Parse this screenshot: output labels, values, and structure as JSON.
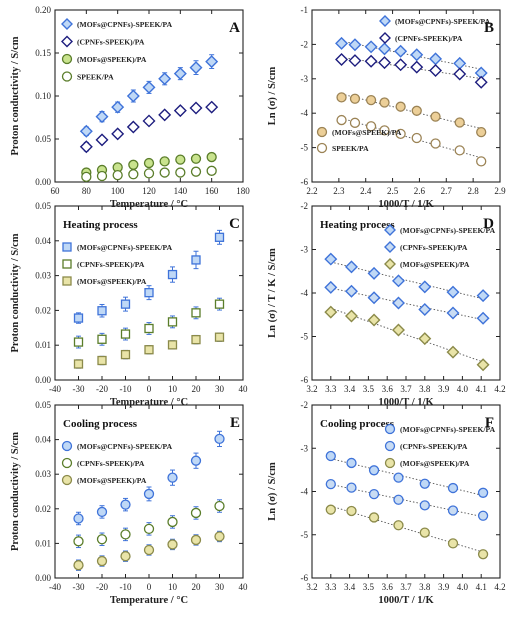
{
  "colors": {
    "blue_fill": "#bfd8f6",
    "blue_edge": "#3f73d9",
    "navy_edge": "#1d1d7e",
    "green_edge": "#5a7d2a",
    "green_fill": "#c9e38e",
    "khaki_fill": "#e9e4a8",
    "khaki_edge": "#8b8a4a",
    "tan_fill": "#eccf98",
    "tan_edge": "#9b8355",
    "error_bar": "#3f73d9"
  },
  "chart_data": [
    {
      "panel": "A",
      "type": "scatter",
      "title": "",
      "xlabel": "Temperature / °C",
      "ylabel": "Proton conductivity / S/cm",
      "xlim": [
        60,
        180
      ],
      "ylim": [
        0,
        0.2
      ],
      "xticks": [
        60,
        80,
        100,
        120,
        140,
        160,
        180
      ],
      "yticks": [
        0,
        0.05,
        0.1,
        0.15,
        0.2
      ],
      "xtick_labels": [
        "60",
        "80",
        "100",
        "120",
        "140",
        "160",
        "180"
      ],
      "ytick_labels": [
        "0.00",
        "0.05",
        "0.10",
        "0.15",
        "0.20"
      ],
      "legend": "top-left",
      "series": [
        {
          "name": "(MOFs@CPNFs)-SPEEK/PA",
          "marker": "diamond",
          "fill": "#bfd8f6",
          "edge": "#3f73d9",
          "x": [
            80,
            90,
            100,
            110,
            120,
            130,
            140,
            150,
            160
          ],
          "y": [
            0.059,
            0.076,
            0.087,
            0.1,
            0.11,
            0.12,
            0.126,
            0.133,
            0.14
          ],
          "err": [
            0.005,
            0.006,
            0.006,
            0.007,
            0.007,
            0.007,
            0.007,
            0.008,
            0.008
          ]
        },
        {
          "name": "(CPNFs-SPEEK)/PA",
          "marker": "diamond",
          "fill": "#ffffff",
          "edge": "#1d1d7e",
          "x": [
            80,
            90,
            100,
            110,
            120,
            130,
            140,
            150,
            160
          ],
          "y": [
            0.041,
            0.049,
            0.056,
            0.064,
            0.071,
            0.078,
            0.083,
            0.086,
            0.087
          ],
          "err": [
            0.005,
            0.004,
            0.004,
            0.004,
            0.004,
            0.004,
            0.004,
            0.004,
            0.004
          ]
        },
        {
          "name": "(MOFs@SPEEK)/PA",
          "marker": "circle",
          "fill": "#c9e38e",
          "edge": "#5a7d2a",
          "x": [
            80,
            90,
            100,
            110,
            120,
            130,
            140,
            150,
            160
          ],
          "y": [
            0.011,
            0.014,
            0.017,
            0.02,
            0.022,
            0.024,
            0.026,
            0.027,
            0.029
          ],
          "err": [
            0.003,
            0.003,
            0.003,
            0.003,
            0.003,
            0.003,
            0.003,
            0.003,
            0.003
          ]
        },
        {
          "name": "SPEEK/PA",
          "marker": "circle",
          "fill": "#ffffff",
          "edge": "#5a7d2a",
          "x": [
            80,
            90,
            100,
            110,
            120,
            130,
            140,
            150,
            160
          ],
          "y": [
            0.006,
            0.007,
            0.008,
            0.009,
            0.01,
            0.011,
            0.011,
            0.012,
            0.013
          ],
          "err": [
            0.002,
            0.002,
            0.002,
            0.002,
            0.002,
            0.002,
            0.002,
            0.002,
            0.002
          ]
        }
      ]
    },
    {
      "panel": "B",
      "type": "scatter",
      "title": "",
      "xlabel": "1000/T / 1/K",
      "ylabel": "Ln (σ)  /  S/cm",
      "xlim": [
        2.2,
        2.9
      ],
      "ylim": [
        -6,
        -1
      ],
      "xticks": [
        2.2,
        2.3,
        2.4,
        2.5,
        2.6,
        2.7,
        2.8,
        2.9
      ],
      "yticks": [
        -6,
        -5,
        -4,
        -3,
        -2,
        -1
      ],
      "xtick_labels": [
        "2.2",
        "2.3",
        "2.4",
        "2.5",
        "2.6",
        "2.7",
        "2.8",
        "2.9"
      ],
      "ytick_labels": [
        "-6",
        "-5",
        "-4",
        "-3",
        "-2",
        "-1"
      ],
      "legend_groups": [
        {
          "position": "top-right",
          "items": [
            0,
            1
          ]
        },
        {
          "position": "bottom-left",
          "items": [
            2,
            3
          ]
        }
      ],
      "fit_lines": true,
      "series": [
        {
          "name": "(MOFs@CPNFs)-SPEEK/PA",
          "marker": "diamond",
          "fill": "#bfd8f6",
          "edge": "#3f73d9",
          "x": [
            2.31,
            2.36,
            2.42,
            2.47,
            2.53,
            2.59,
            2.66,
            2.75,
            2.83
          ],
          "y": [
            -1.97,
            -2.01,
            -2.07,
            -2.13,
            -2.2,
            -2.3,
            -2.42,
            -2.55,
            -2.83
          ]
        },
        {
          "name": "(CPNFs-SPEEK)/PA",
          "marker": "diamond",
          "fill": "#ffffff",
          "edge": "#1d1d7e",
          "x": [
            2.31,
            2.36,
            2.42,
            2.47,
            2.53,
            2.59,
            2.66,
            2.75,
            2.83
          ],
          "y": [
            -2.44,
            -2.47,
            -2.49,
            -2.53,
            -2.59,
            -2.66,
            -2.76,
            -2.86,
            -3.1
          ]
        },
        {
          "name": "(MOFs@SPEEK)/PA",
          "marker": "circle",
          "fill": "#eccf98",
          "edge": "#9b8355",
          "x": [
            2.31,
            2.36,
            2.42,
            2.47,
            2.53,
            2.59,
            2.66,
            2.75,
            2.83
          ],
          "y": [
            -3.54,
            -3.58,
            -3.62,
            -3.69,
            -3.81,
            -3.93,
            -4.1,
            -4.27,
            -4.55
          ]
        },
        {
          "name": "SPEEK/PA",
          "marker": "circle",
          "fill": "#ffffff",
          "edge": "#9b8355",
          "x": [
            2.31,
            2.36,
            2.42,
            2.47,
            2.53,
            2.59,
            2.66,
            2.75,
            2.83
          ],
          "y": [
            -4.2,
            -4.28,
            -4.38,
            -4.5,
            -4.6,
            -4.72,
            -4.88,
            -5.08,
            -5.4
          ]
        }
      ]
    },
    {
      "panel": "C",
      "type": "scatter",
      "title": "Heating process",
      "xlabel": "Temperature / °C",
      "ylabel": "Proton conductivity / S/cm",
      "xlim": [
        -40,
        40
      ],
      "ylim": [
        0,
        0.05
      ],
      "xticks": [
        -40,
        -30,
        -20,
        -10,
        0,
        10,
        20,
        30,
        40
      ],
      "yticks": [
        0,
        0.01,
        0.02,
        0.03,
        0.04,
        0.05
      ],
      "xtick_labels": [
        "-40",
        "-30",
        "-20",
        "-10",
        "0",
        "10",
        "20",
        "30",
        "40"
      ],
      "ytick_labels": [
        "0.00",
        "0.01",
        "0.02",
        "0.03",
        "0.04",
        "0.05"
      ],
      "legend": "top-left",
      "series": [
        {
          "name": "(MOFs@CPNFs)-SPEEK/PA",
          "marker": "square",
          "fill": "#bfd8f6",
          "edge": "#3f73d9",
          "x": [
            -30,
            -20,
            -10,
            0,
            10,
            20,
            30
          ],
          "y": [
            0.0178,
            0.0199,
            0.0218,
            0.0251,
            0.0303,
            0.0345,
            0.041
          ],
          "err": [
            0.0015,
            0.0018,
            0.002,
            0.002,
            0.0022,
            0.0025,
            0.002
          ]
        },
        {
          "name": "(CPNFs-SPEEK)/PA",
          "marker": "square",
          "fill": "#ffffff",
          "edge": "#5a7d2a",
          "x": [
            -30,
            -20,
            -10,
            0,
            10,
            20,
            30
          ],
          "y": [
            0.0109,
            0.0117,
            0.0132,
            0.0148,
            0.0167,
            0.0193,
            0.0218
          ],
          "err": [
            0.0017,
            0.0017,
            0.0017,
            0.0017,
            0.0017,
            0.0017,
            0.0017
          ]
        },
        {
          "name": "(MOFs@SPEEK)/PA",
          "marker": "square",
          "fill": "#e9e4a8",
          "edge": "#8b8a4a",
          "x": [
            -30,
            -20,
            -10,
            0,
            10,
            20,
            30
          ],
          "y": [
            0.0046,
            0.0056,
            0.0073,
            0.0087,
            0.0101,
            0.0116,
            0.0123
          ],
          "err": [
            0.0012,
            0.0012,
            0.0012,
            0.0012,
            0.0012,
            0.0012,
            0.0012
          ]
        }
      ]
    },
    {
      "panel": "D",
      "type": "scatter",
      "title": "Heating process",
      "xlabel": "1000/T / 1/K",
      "ylabel": "Ln (σ) / T / K / S/cm",
      "xlim": [
        3.2,
        4.2
      ],
      "ylim": [
        -6,
        -2
      ],
      "xticks": [
        3.2,
        3.3,
        3.4,
        3.5,
        3.6,
        3.7,
        3.8,
        3.9,
        4.0,
        4.1,
        4.2
      ],
      "yticks": [
        -6,
        -5,
        -4,
        -3,
        -2
      ],
      "xtick_labels": [
        "3.2",
        "3.3",
        "3.4",
        "3.5",
        "3.6",
        "3.7",
        "3.8",
        "3.9",
        "4.0",
        "4.1",
        "4.2"
      ],
      "ytick_labels": [
        "-6",
        "-5",
        "-4",
        "-3",
        "-2"
      ],
      "legend": "top-right",
      "fit_lines": true,
      "series": [
        {
          "name": "(MOFs@CPNFs)-SPEEK/PA",
          "marker": "diamond",
          "fill": "#bfd8f6",
          "edge": "#3f73d9",
          "x": [
            3.3,
            3.41,
            3.53,
            3.66,
            3.8,
            3.95,
            4.11
          ],
          "y": [
            -3.22,
            -3.4,
            -3.55,
            -3.72,
            -3.86,
            -3.98,
            -4.06
          ]
        },
        {
          "name": "(CPNFs-SPEEK)/PA",
          "marker": "diamond",
          "fill": "#c9dcf3",
          "edge": "#3f73d9",
          "x": [
            3.3,
            3.41,
            3.53,
            3.66,
            3.8,
            3.95,
            4.11
          ],
          "y": [
            -3.87,
            -3.96,
            -4.11,
            -4.23,
            -4.38,
            -4.46,
            -4.58
          ]
        },
        {
          "name": "(MOFs@SPEEK)/PA",
          "marker": "diamond",
          "fill": "#e9e4a8",
          "edge": "#8b8a4a",
          "x": [
            3.3,
            3.41,
            3.53,
            3.66,
            3.8,
            3.95,
            4.11
          ],
          "y": [
            -4.44,
            -4.53,
            -4.62,
            -4.85,
            -5.05,
            -5.36,
            -5.65
          ]
        }
      ]
    },
    {
      "panel": "E",
      "type": "scatter",
      "title": "Cooling process",
      "xlabel": "Temperature / °C",
      "ylabel": "Proton conductivity / S/cm",
      "xlim": [
        -40,
        40
      ],
      "ylim": [
        0,
        0.05
      ],
      "xticks": [
        -40,
        -30,
        -20,
        -10,
        0,
        10,
        20,
        30,
        40
      ],
      "yticks": [
        0,
        0.01,
        0.02,
        0.03,
        0.04,
        0.05
      ],
      "xtick_labels": [
        "-40",
        "-30",
        "-20",
        "-10",
        "0",
        "10",
        "20",
        "30",
        "40"
      ],
      "ytick_labels": [
        "0.00",
        "0.01",
        "0.02",
        "0.03",
        "0.04",
        "0.05"
      ],
      "legend": "top-left",
      "series": [
        {
          "name": "(MOFs@CPNFs)-SPEEK/PA",
          "marker": "circle",
          "fill": "#bfd8f6",
          "edge": "#3f73d9",
          "x": [
            -30,
            -20,
            -10,
            0,
            10,
            20,
            30
          ],
          "y": [
            0.0172,
            0.0191,
            0.0212,
            0.0243,
            0.029,
            0.0339,
            0.0402
          ],
          "err": [
            0.0018,
            0.0018,
            0.0018,
            0.002,
            0.0022,
            0.0022,
            0.0022
          ]
        },
        {
          "name": "(CPNFs-SPEEK)/PA",
          "marker": "circle",
          "fill": "#ffffff",
          "edge": "#5a7d2a",
          "x": [
            -30,
            -20,
            -10,
            0,
            10,
            20,
            30
          ],
          "y": [
            0.0106,
            0.0112,
            0.0126,
            0.0142,
            0.0162,
            0.0188,
            0.0208
          ],
          "err": [
            0.0018,
            0.0018,
            0.0018,
            0.0018,
            0.0018,
            0.0018,
            0.0018
          ]
        },
        {
          "name": "(MOFs@SPEEK)/PA",
          "marker": "circle",
          "fill": "#e9e4a8",
          "edge": "#8b8a4a",
          "x": [
            -30,
            -20,
            -10,
            0,
            10,
            20,
            30
          ],
          "y": [
            0.0037,
            0.0049,
            0.0063,
            0.0081,
            0.0097,
            0.011,
            0.012
          ],
          "err": [
            0.0015,
            0.0015,
            0.0015,
            0.0015,
            0.0015,
            0.0015,
            0.0015
          ]
        }
      ]
    },
    {
      "panel": "F",
      "type": "scatter",
      "title": "Cooling process",
      "xlabel": "1000/T / 1/K",
      "ylabel": "Ln (σ) / S/cm",
      "xlim": [
        3.2,
        4.2
      ],
      "ylim": [
        -6,
        -2
      ],
      "xticks": [
        3.2,
        3.3,
        3.4,
        3.5,
        3.6,
        3.7,
        3.8,
        3.9,
        4.0,
        4.1,
        4.2
      ],
      "yticks": [
        -6,
        -5,
        -4,
        -3,
        -2
      ],
      "xtick_labels": [
        "3.2",
        "3.3",
        "3.4",
        "3.5",
        "3.6",
        "3.7",
        "3.8",
        "3.9",
        "4.0",
        "4.1",
        "4.2"
      ],
      "ytick_labels": [
        "-6",
        "-5",
        "-4",
        "-3",
        "-2"
      ],
      "legend": "top-right",
      "fit_lines": true,
      "series": [
        {
          "name": "(MOFs@CPNFs)-SPEEK/PA",
          "marker": "circle",
          "fill": "#bfd8f6",
          "edge": "#3f73d9",
          "x": [
            3.3,
            3.41,
            3.53,
            3.66,
            3.8,
            3.95,
            4.11
          ],
          "y": [
            -3.18,
            -3.34,
            -3.51,
            -3.68,
            -3.82,
            -3.92,
            -4.03
          ]
        },
        {
          "name": "(CPNFs-SPEEK)/PA",
          "marker": "circle",
          "fill": "#c9dcf3",
          "edge": "#3f73d9",
          "x": [
            3.3,
            3.41,
            3.53,
            3.66,
            3.8,
            3.95,
            4.11
          ],
          "y": [
            -3.83,
            -3.91,
            -4.06,
            -4.19,
            -4.32,
            -4.44,
            -4.56
          ]
        },
        {
          "name": "(MOFs@SPEEK)/PA",
          "marker": "circle",
          "fill": "#e9e4a8",
          "edge": "#8b8a4a",
          "x": [
            3.3,
            3.41,
            3.53,
            3.66,
            3.8,
            3.95,
            4.11
          ],
          "y": [
            -4.42,
            -4.45,
            -4.6,
            -4.78,
            -4.95,
            -5.2,
            -5.45
          ]
        }
      ]
    }
  ]
}
